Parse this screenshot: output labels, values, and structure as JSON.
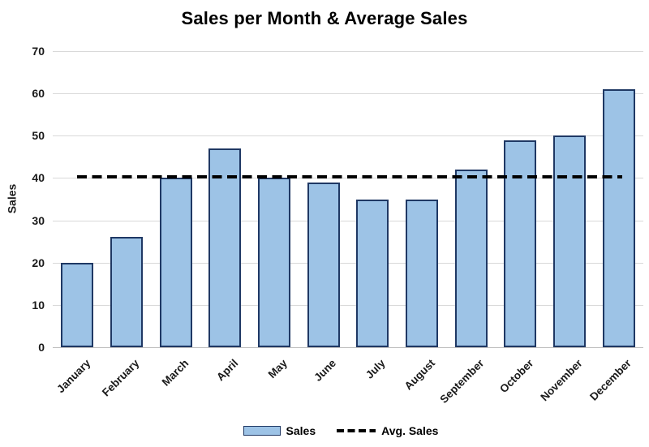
{
  "title": "Sales per Month & Average Sales",
  "chart_data": {
    "type": "bar",
    "title": "Sales per Month & Average Sales",
    "ylabel": "Sales",
    "xlabel": "",
    "categories": [
      "January",
      "February",
      "March",
      "April",
      "May",
      "June",
      "July",
      "August",
      "September",
      "October",
      "November",
      "December"
    ],
    "series": [
      {
        "name": "Sales",
        "type": "bar",
        "values": [
          20,
          26,
          40,
          47,
          40,
          39,
          35,
          35,
          42,
          49,
          50,
          61
        ]
      },
      {
        "name": "Avg. Sales",
        "type": "line",
        "line_style": "dashed",
        "values": [
          40.33,
          40.33,
          40.33,
          40.33,
          40.33,
          40.33,
          40.33,
          40.33,
          40.33,
          40.33,
          40.33,
          40.33
        ]
      }
    ],
    "average_value": 40.33,
    "ylim": [
      0,
      70
    ],
    "yticks": [
      0,
      10,
      20,
      30,
      40,
      50,
      60,
      70
    ],
    "grid": "horizontal",
    "legend_position": "bottom",
    "colors": {
      "bar_fill": "#9DC3E6",
      "bar_border": "#1F3864",
      "avg_line": "#000000",
      "gridline": "#D9D9D9",
      "axis_line": "#BFBFBF",
      "text": "#000000"
    }
  }
}
